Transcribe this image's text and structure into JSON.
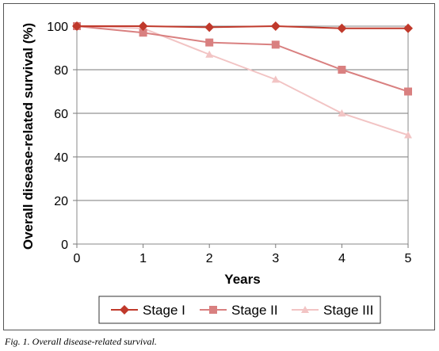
{
  "chart_data": {
    "type": "line",
    "title": "",
    "xlabel": "Years",
    "ylabel": "Overall disease-related survival (%)",
    "x": [
      0,
      1,
      2,
      3,
      4,
      5
    ],
    "xlim": [
      0,
      5
    ],
    "ylim": [
      0,
      100
    ],
    "x_ticks": [
      "0",
      "1",
      "2",
      "3",
      "4",
      "5"
    ],
    "y_ticks": [
      "0",
      "20",
      "40",
      "60",
      "80",
      "100"
    ],
    "grid": "horizontal major gridlines",
    "legend_position": "bottom",
    "series": [
      {
        "name": "Stage I",
        "marker": "diamond",
        "color": "#c0392b",
        "values": [
          100,
          100,
          99.5,
          100,
          99,
          99
        ]
      },
      {
        "name": "Stage II",
        "marker": "square",
        "color": "#d98080",
        "values": [
          100,
          97,
          92.5,
          91.5,
          80,
          70
        ]
      },
      {
        "name": "Stage III",
        "marker": "triangle",
        "color": "#f2c4c4",
        "values": [
          100,
          99,
          87,
          75.5,
          60,
          50
        ]
      }
    ]
  },
  "caption": "Fig. 1. Overall disease-related survival."
}
